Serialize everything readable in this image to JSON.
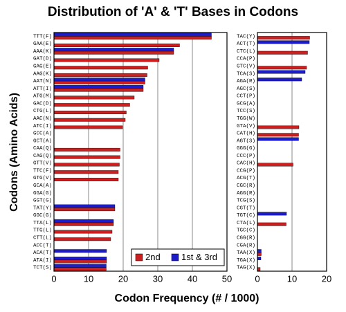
{
  "chart_data": [
    {
      "type": "bar",
      "orientation": "horizontal",
      "title": "Distribution of 'A' & 'T' Bases in Codons",
      "xlabel": "Codon Frequency (# / 1000)",
      "ylabel": "Codons (Amino Acids)",
      "categories": [
        "TTT(F)",
        "GAA(E)",
        "AAA(K)",
        "GAT(D)",
        "GAG(E)",
        "AAG(K)",
        "AAT(N)",
        "ATT(I)",
        "ATG(M)",
        "GAC(D)",
        "CTG(L)",
        "AAC(N)",
        "ATC(I)",
        "GCC(A)",
        "GCT(A)",
        "CAA(Q)",
        "CAG(Q)",
        "GTT(V)",
        "TTC(F)",
        "GTG(V)",
        "GCA(A)",
        "GGA(G)",
        "GGT(G)",
        "TAT(Y)",
        "GGC(G)",
        "TTA(L)",
        "TTG(L)",
        "CTT(L)",
        "ACC(T)",
        "ACA(T)",
        "ATA(I)",
        "TCT(S)"
      ],
      "series": [
        {
          "name": "2nd",
          "color": "#cc1f1f",
          "values": [
            45.5,
            36.3,
            34.6,
            30.4,
            27.1,
            26.9,
            26.3,
            25.8,
            23.2,
            21.9,
            20.9,
            20.6,
            19.8,
            null,
            null,
            19.1,
            19.1,
            18.9,
            18.6,
            18.6,
            null,
            null,
            null,
            17.6,
            null,
            17.2,
            16.8,
            16.4,
            null,
            null,
            15.2,
            15.1
          ]
        },
        {
          "name": "1st & 3rd",
          "color": "#1c1cc8",
          "values": [
            45.5,
            null,
            34.6,
            null,
            null,
            null,
            26.3,
            25.8,
            null,
            null,
            null,
            null,
            null,
            null,
            null,
            null,
            null,
            null,
            null,
            null,
            null,
            null,
            null,
            17.6,
            null,
            17.2,
            null,
            null,
            null,
            15.2,
            15.2,
            15.1
          ]
        }
      ],
      "xlim": [
        0,
        50
      ],
      "xticks": [
        0,
        10,
        20,
        30,
        40,
        50
      ],
      "grid": true,
      "legend": "lower right"
    },
    {
      "type": "bar",
      "orientation": "horizontal",
      "categories": [
        "TAC(Y)",
        "ACT(T)",
        "CTC(L)",
        "CCA(P)",
        "GTC(V)",
        "TCA(S)",
        "AGA(R)",
        "AGC(S)",
        "CCT(P)",
        "GCG(A)",
        "TCC(S)",
        "TGG(W)",
        "GTA(V)",
        "CAT(H)",
        "AGT(S)",
        "GGG(G)",
        "CCC(P)",
        "CAC(H)",
        "CCG(P)",
        "ACG(T)",
        "CGC(R)",
        "AGG(R)",
        "TCG(S)",
        "CGT(T)",
        "TGT(C)",
        "CTA(L)",
        "TGC(C)",
        "CGG(R)",
        "CGA(R)",
        "TAA(X)",
        "TGA(X)",
        "TAG(X)"
      ],
      "series": [
        {
          "color": "#cc1f1f",
          "values": [
            15.1,
            null,
            14.5,
            null,
            14.2,
            null,
            null,
            null,
            null,
            null,
            null,
            null,
            12.0,
            11.9,
            null,
            null,
            null,
            10.3,
            null,
            null,
            null,
            null,
            null,
            null,
            null,
            8.3,
            null,
            null,
            null,
            1.1,
            null,
            0.8
          ]
        },
        {
          "color": "#1c1cc8",
          "values": [
            null,
            15.0,
            null,
            null,
            null,
            13.8,
            12.8,
            null,
            null,
            null,
            null,
            null,
            null,
            null,
            11.9,
            null,
            null,
            null,
            null,
            null,
            null,
            null,
            null,
            null,
            8.4,
            null,
            null,
            null,
            null,
            1.1,
            1.0,
            null
          ]
        }
      ],
      "xlim": [
        0,
        20
      ],
      "xticks": [
        0,
        10,
        20
      ],
      "grid": true
    }
  ]
}
